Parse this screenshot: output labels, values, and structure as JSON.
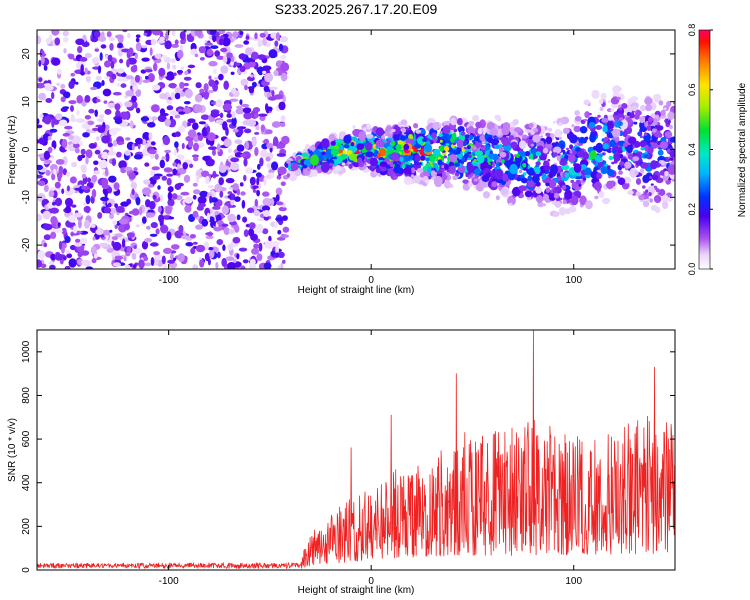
{
  "figure_title": "S233.2025.267.17.20.E09",
  "chart_data": [
    {
      "type": "heatmap",
      "title": "S233.2025.267.17.20.E09",
      "xlabel": "Height of straight line (km)",
      "ylabel": "Frequency (Hz)",
      "xlim": [
        -165,
        150
      ],
      "ylim": [
        -25,
        25
      ],
      "xticks": [
        -100,
        0,
        100
      ],
      "yticks": [
        -20,
        -10,
        0,
        10,
        20
      ],
      "xtick_labels": [
        "-100",
        "0",
        "100"
      ],
      "ytick_labels": [
        "-20",
        "-10",
        "0",
        "10",
        "20"
      ],
      "noise_region_x": [
        -165,
        -42
      ],
      "signal_profile": [
        {
          "x": -42,
          "freq": -4,
          "amp": 0.35
        },
        {
          "x": -30,
          "freq": -2,
          "amp": 0.55
        },
        {
          "x": -20,
          "freq": -1,
          "amp": 0.65
        },
        {
          "x": -10,
          "freq": 0,
          "amp": 0.78
        },
        {
          "x": 0,
          "freq": 0,
          "amp": 0.7
        },
        {
          "x": 10,
          "freq": -1,
          "amp": 0.75
        },
        {
          "x": 20,
          "freq": 0,
          "amp": 0.8
        },
        {
          "x": 30,
          "freq": -1,
          "amp": 0.72
        },
        {
          "x": 40,
          "freq": 0,
          "amp": 0.6
        },
        {
          "x": 50,
          "freq": -1,
          "amp": 0.5
        },
        {
          "x": 60,
          "freq": -2,
          "amp": 0.45
        },
        {
          "x": 75,
          "freq": -3,
          "amp": 0.45
        },
        {
          "x": 90,
          "freq": -4,
          "amp": 0.35
        },
        {
          "x": 100,
          "freq": -3,
          "amp": 0.35
        },
        {
          "x": 110,
          "freq": 0,
          "amp": 0.45
        },
        {
          "x": 125,
          "freq": 1,
          "amp": 0.35
        },
        {
          "x": 140,
          "freq": -1,
          "amp": 0.3
        },
        {
          "x": 150,
          "freq": 0,
          "amp": 0.25
        }
      ],
      "colorbar": {
        "label": "Normalized spectral amplitude",
        "range": [
          0.0,
          0.8
        ],
        "ticks": [
          0.0,
          0.2,
          0.4,
          0.6,
          0.8
        ],
        "tick_labels": [
          "0.0",
          "0.2",
          "0.4",
          "0.6",
          "0.8"
        ]
      }
    },
    {
      "type": "line",
      "xlabel": "Height of straight line (km)",
      "ylabel": "SNR (10 * v/v)",
      "xlim": [
        -165,
        150
      ],
      "ylim": [
        0,
        1100
      ],
      "xticks": [
        -100,
        0,
        100
      ],
      "yticks": [
        0,
        200,
        400,
        600,
        800,
        1000
      ],
      "xtick_labels": [
        "-100",
        "0",
        "100"
      ],
      "ytick_labels": [
        "0",
        "200",
        "400",
        "600",
        "800",
        "1000"
      ],
      "color": "#ee2222",
      "series_envelope": [
        {
          "x": -165,
          "base": 20,
          "spread": 25
        },
        {
          "x": -35,
          "base": 20,
          "spread": 30
        },
        {
          "x": -30,
          "base": 80,
          "spread": 160
        },
        {
          "x": -10,
          "base": 150,
          "spread": 280
        },
        {
          "x": 10,
          "base": 220,
          "spread": 380
        },
        {
          "x": 30,
          "base": 250,
          "spread": 450
        },
        {
          "x": 50,
          "base": 270,
          "spread": 560
        },
        {
          "x": 70,
          "base": 260,
          "spread": 560
        },
        {
          "x": 80,
          "base": 250,
          "spread": 600
        },
        {
          "x": 100,
          "base": 280,
          "spread": 520
        },
        {
          "x": 120,
          "base": 290,
          "spread": 560
        },
        {
          "x": 140,
          "base": 300,
          "spread": 620
        },
        {
          "x": 150,
          "base": 300,
          "spread": 560
        }
      ],
      "highlight_peaks": [
        {
          "x": -10,
          "y": 560
        },
        {
          "x": 10,
          "y": 710
        },
        {
          "x": 42,
          "y": 900
        },
        {
          "x": 80,
          "y": 1100
        },
        {
          "x": 140,
          "y": 930
        }
      ]
    }
  ]
}
